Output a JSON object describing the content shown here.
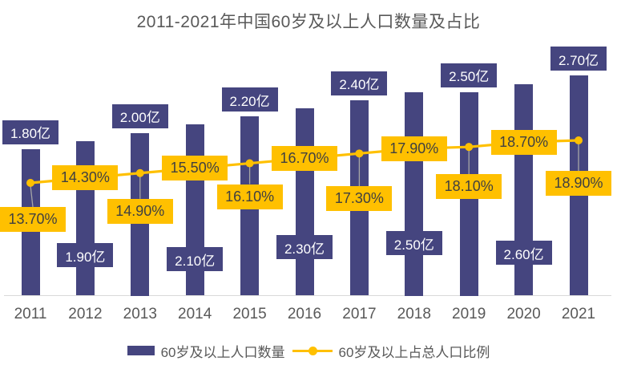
{
  "title": "2011-2021年中国60岁及以上人口数量及占比",
  "legend": {
    "bar_label": "60岁及以上人口数量",
    "line_label": "60岁及以上占总人口比例"
  },
  "colors": {
    "bar": "#45457f",
    "bar_label_bg": "#45457f",
    "bar_label_text": "#ffffff",
    "line": "#ffc000",
    "pct_label_bg": "#ffc000",
    "pct_label_text": "#404040",
    "axis_text": "#595959",
    "leader_line": "#a6a6a6",
    "axis_line": "#d9d9d9"
  },
  "chart_data": {
    "type": "bar+line",
    "title": "2011-2021年中国60岁及以上人口数量及占比",
    "categories": [
      "2011",
      "2012",
      "2013",
      "2014",
      "2015",
      "2016",
      "2017",
      "2018",
      "2019",
      "2020",
      "2021"
    ],
    "series": [
      {
        "name": "60岁及以上人口数量",
        "type": "bar",
        "unit": "亿",
        "values": [
          1.8,
          1.9,
          2.0,
          2.1,
          2.2,
          2.3,
          2.4,
          2.5,
          2.5,
          2.6,
          2.7
        ],
        "labels": [
          "1.80亿",
          "1.90亿",
          "2.00亿",
          "2.10亿",
          "2.20亿",
          "2.30亿",
          "2.40亿",
          "2.50亿",
          "2.50亿",
          "2.60亿",
          "2.70亿"
        ]
      },
      {
        "name": "60岁及以上占总人口比例",
        "type": "line",
        "unit": "%",
        "values": [
          13.7,
          14.3,
          14.9,
          15.5,
          16.1,
          16.7,
          17.3,
          17.9,
          18.1,
          18.7,
          18.9
        ],
        "labels": [
          "13.70%",
          "14.30%",
          "14.90%",
          "15.50%",
          "16.10%",
          "16.70%",
          "17.30%",
          "17.90%",
          "18.10%",
          "18.70%",
          "18.90%"
        ]
      }
    ],
    "xlabel": "",
    "ylabel": "",
    "grid": false,
    "y_axis_visible": false,
    "legend_position": "bottom",
    "data_labels": "on"
  }
}
